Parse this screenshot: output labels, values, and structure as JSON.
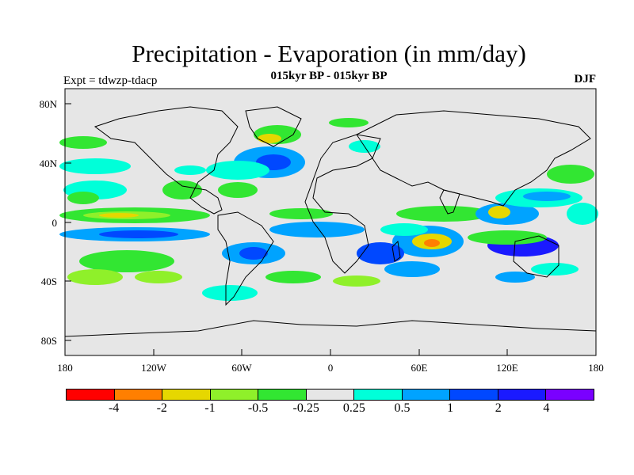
{
  "title": "Precipitation - Evaporation (in mm/day)",
  "subtitle": "015kyr BP - 015kyr BP",
  "left_label": "Expt = tdwzp-tdacp",
  "right_label": "DJF",
  "map": {
    "background_color": "#e6e6e6",
    "projection": "cylindrical-equidistant",
    "y_ticks": [
      "80N",
      "40N",
      "0",
      "40S",
      "80S"
    ],
    "x_ticks": [
      "180",
      "120W",
      "60W",
      "0",
      "60E",
      "120E",
      "180"
    ]
  },
  "colorbar": {
    "colors": [
      "#ff0000",
      "#ff7f00",
      "#e6d700",
      "#8ff02a",
      "#32e632",
      "#e6e6e6",
      "#00ffd9",
      "#00a3ff",
      "#0048ff",
      "#1a1aff",
      "#7a00ff"
    ],
    "labels": [
      "-4",
      "-2",
      "-1",
      "-0.5",
      "-0.25",
      "0.25",
      "0.5",
      "1",
      "2",
      "4"
    ]
  }
}
